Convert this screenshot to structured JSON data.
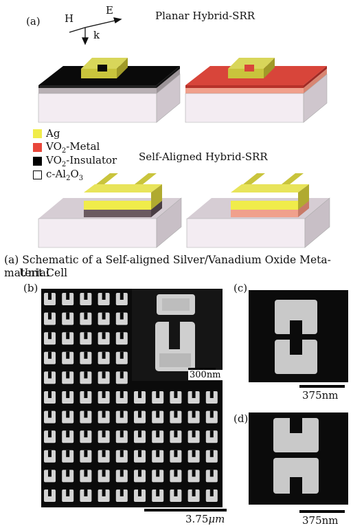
{
  "panel_a": {
    "label": "(a)",
    "axes": {
      "h": "H",
      "e": "E",
      "k": "k"
    },
    "title_planar": "Planar Hybrid-SRR",
    "title_self_aligned": "Self-Aligned Hybrid-SRR",
    "legend": [
      {
        "label": "Ag",
        "color": "#f0ec4a"
      },
      {
        "label_pre": "VO",
        "sub": "2",
        "label_post": "-Metal",
        "color": "#e8463a"
      },
      {
        "label_pre": "VO",
        "sub": "2",
        "label_post": "-Insulator",
        "color": "#000000"
      },
      {
        "label_html": "c-Al2O3",
        "color": "#ffffff"
      }
    ],
    "caption_line1": "(a) Schematic of a Self-aligned Silver/Vanadium Oxide Meta-material",
    "caption_line2": "Unit Cell"
  },
  "panel_b": {
    "label": "(b)",
    "inset_scale": "300nm",
    "main_scale_pre": "3.75",
    "main_scale_unit": "μm"
  },
  "panel_c": {
    "label": "(c)",
    "scale": "375nm"
  },
  "panel_d": {
    "label": "(d)",
    "scale": "375nm"
  }
}
